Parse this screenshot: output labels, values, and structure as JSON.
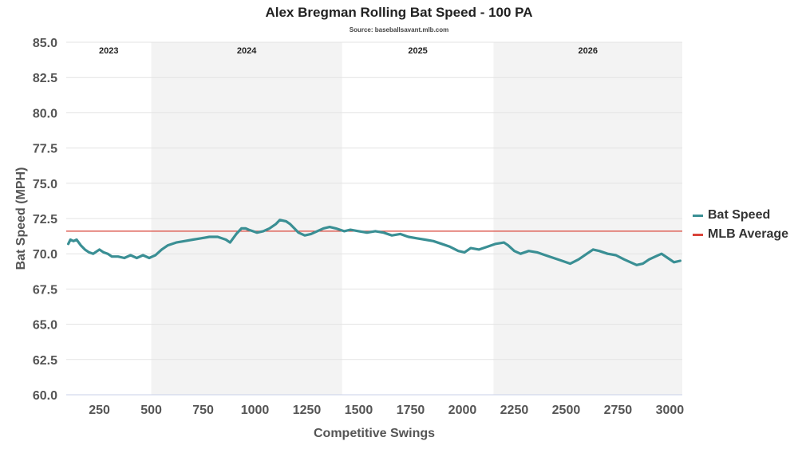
{
  "chart_data": {
    "type": "line",
    "title": "Alex Bregman Rolling Bat Speed - 100 PA",
    "subtitle": "Source: baseballsavant.mlb.com",
    "xlabel": "Competitive Swings",
    "ylabel": "Bat Speed (MPH)",
    "xlim": [
      90,
      3060
    ],
    "ylim": [
      60,
      85
    ],
    "xticks": [
      250,
      500,
      750,
      1000,
      1250,
      1500,
      1750,
      2000,
      2250,
      2500,
      2750,
      3000
    ],
    "xtick_labels": [
      "250",
      "500",
      "750",
      "1000",
      "1250",
      "1500",
      "1750",
      "2000",
      "2250",
      "2500",
      "2750",
      "3000"
    ],
    "yticks": [
      60,
      62.5,
      65,
      67.5,
      70,
      72.5,
      75,
      77.5,
      80,
      82.5,
      85
    ],
    "ytick_labels": [
      "60.0",
      "62.5",
      "65.0",
      "67.5",
      "70.0",
      "72.5",
      "75.0",
      "77.5",
      "80.0",
      "82.5",
      "85.0"
    ],
    "grid": true,
    "legend_position": "right",
    "seasons": [
      {
        "label": "2023",
        "start": 90,
        "end": 500,
        "shaded": false
      },
      {
        "label": "2024",
        "start": 500,
        "end": 1420,
        "shaded": true
      },
      {
        "label": "2025",
        "start": 1420,
        "end": 2150,
        "shaded": false
      },
      {
        "label": "2026",
        "start": 2150,
        "end": 3060,
        "shaded": true
      }
    ],
    "series": [
      {
        "name": "Bat Speed",
        "color": "#3a8f94",
        "x": [
          100,
          110,
          125,
          140,
          160,
          180,
          200,
          220,
          250,
          270,
          290,
          310,
          340,
          370,
          400,
          430,
          460,
          490,
          505,
          520,
          550,
          580,
          620,
          660,
          700,
          740,
          780,
          820,
          860,
          880,
          910,
          935,
          955,
          970,
          990,
          1010,
          1040,
          1070,
          1100,
          1120,
          1150,
          1170,
          1190,
          1210,
          1240,
          1270,
          1300,
          1330,
          1360,
          1390,
          1410,
          1430,
          1460,
          1500,
          1540,
          1580,
          1620,
          1660,
          1700,
          1740,
          1780,
          1820,
          1860,
          1900,
          1940,
          1980,
          2010,
          2040,
          2080,
          2120,
          2160,
          2200,
          2220,
          2250,
          2280,
          2320,
          2360,
          2400,
          2440,
          2480,
          2520,
          2560,
          2600,
          2630,
          2660,
          2700,
          2740,
          2780,
          2810,
          2840,
          2870,
          2900,
          2930,
          2960,
          2990,
          3020,
          3050
        ],
        "y": [
          70.7,
          71.0,
          70.9,
          71.0,
          70.6,
          70.3,
          70.1,
          70.0,
          70.3,
          70.1,
          70.0,
          69.8,
          69.8,
          69.7,
          69.9,
          69.7,
          69.9,
          69.7,
          69.8,
          69.9,
          70.3,
          70.6,
          70.8,
          70.9,
          71.0,
          71.1,
          71.2,
          71.2,
          71.0,
          70.8,
          71.4,
          71.8,
          71.8,
          71.7,
          71.6,
          71.5,
          71.6,
          71.8,
          72.1,
          72.4,
          72.3,
          72.1,
          71.8,
          71.5,
          71.3,
          71.4,
          71.6,
          71.8,
          71.9,
          71.8,
          71.7,
          71.6,
          71.7,
          71.6,
          71.5,
          71.6,
          71.5,
          71.3,
          71.4,
          71.2,
          71.1,
          71.0,
          70.9,
          70.7,
          70.5,
          70.2,
          70.1,
          70.4,
          70.3,
          70.5,
          70.7,
          70.8,
          70.6,
          70.2,
          70.0,
          70.2,
          70.1,
          69.9,
          69.7,
          69.5,
          69.3,
          69.6,
          70.0,
          70.3,
          70.2,
          70.0,
          69.9,
          69.6,
          69.4,
          69.2,
          69.3,
          69.6,
          69.8,
          70.0,
          69.7,
          69.4,
          69.5
        ]
      },
      {
        "name": "MLB Average",
        "color": "#d9443a",
        "constant": 71.6
      }
    ]
  }
}
